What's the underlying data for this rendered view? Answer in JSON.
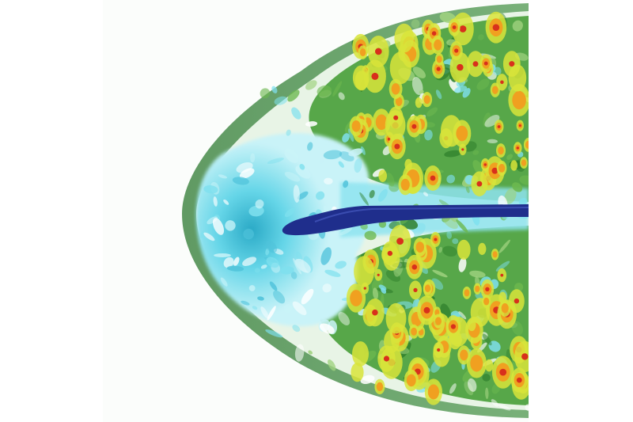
{
  "image": {
    "subject": "",
    "colors": {
      "background": "#ffffff",
      "outer_shell": "#5a9a5a",
      "green": "#3f9a35",
      "yellow": "#d8e43a",
      "orange": "#f0a020",
      "red": "#d8301c",
      "cyan": "#7fe0ee",
      "light_cyan": "#c9f3f8",
      "jet": "#1f2e8c"
    }
  }
}
